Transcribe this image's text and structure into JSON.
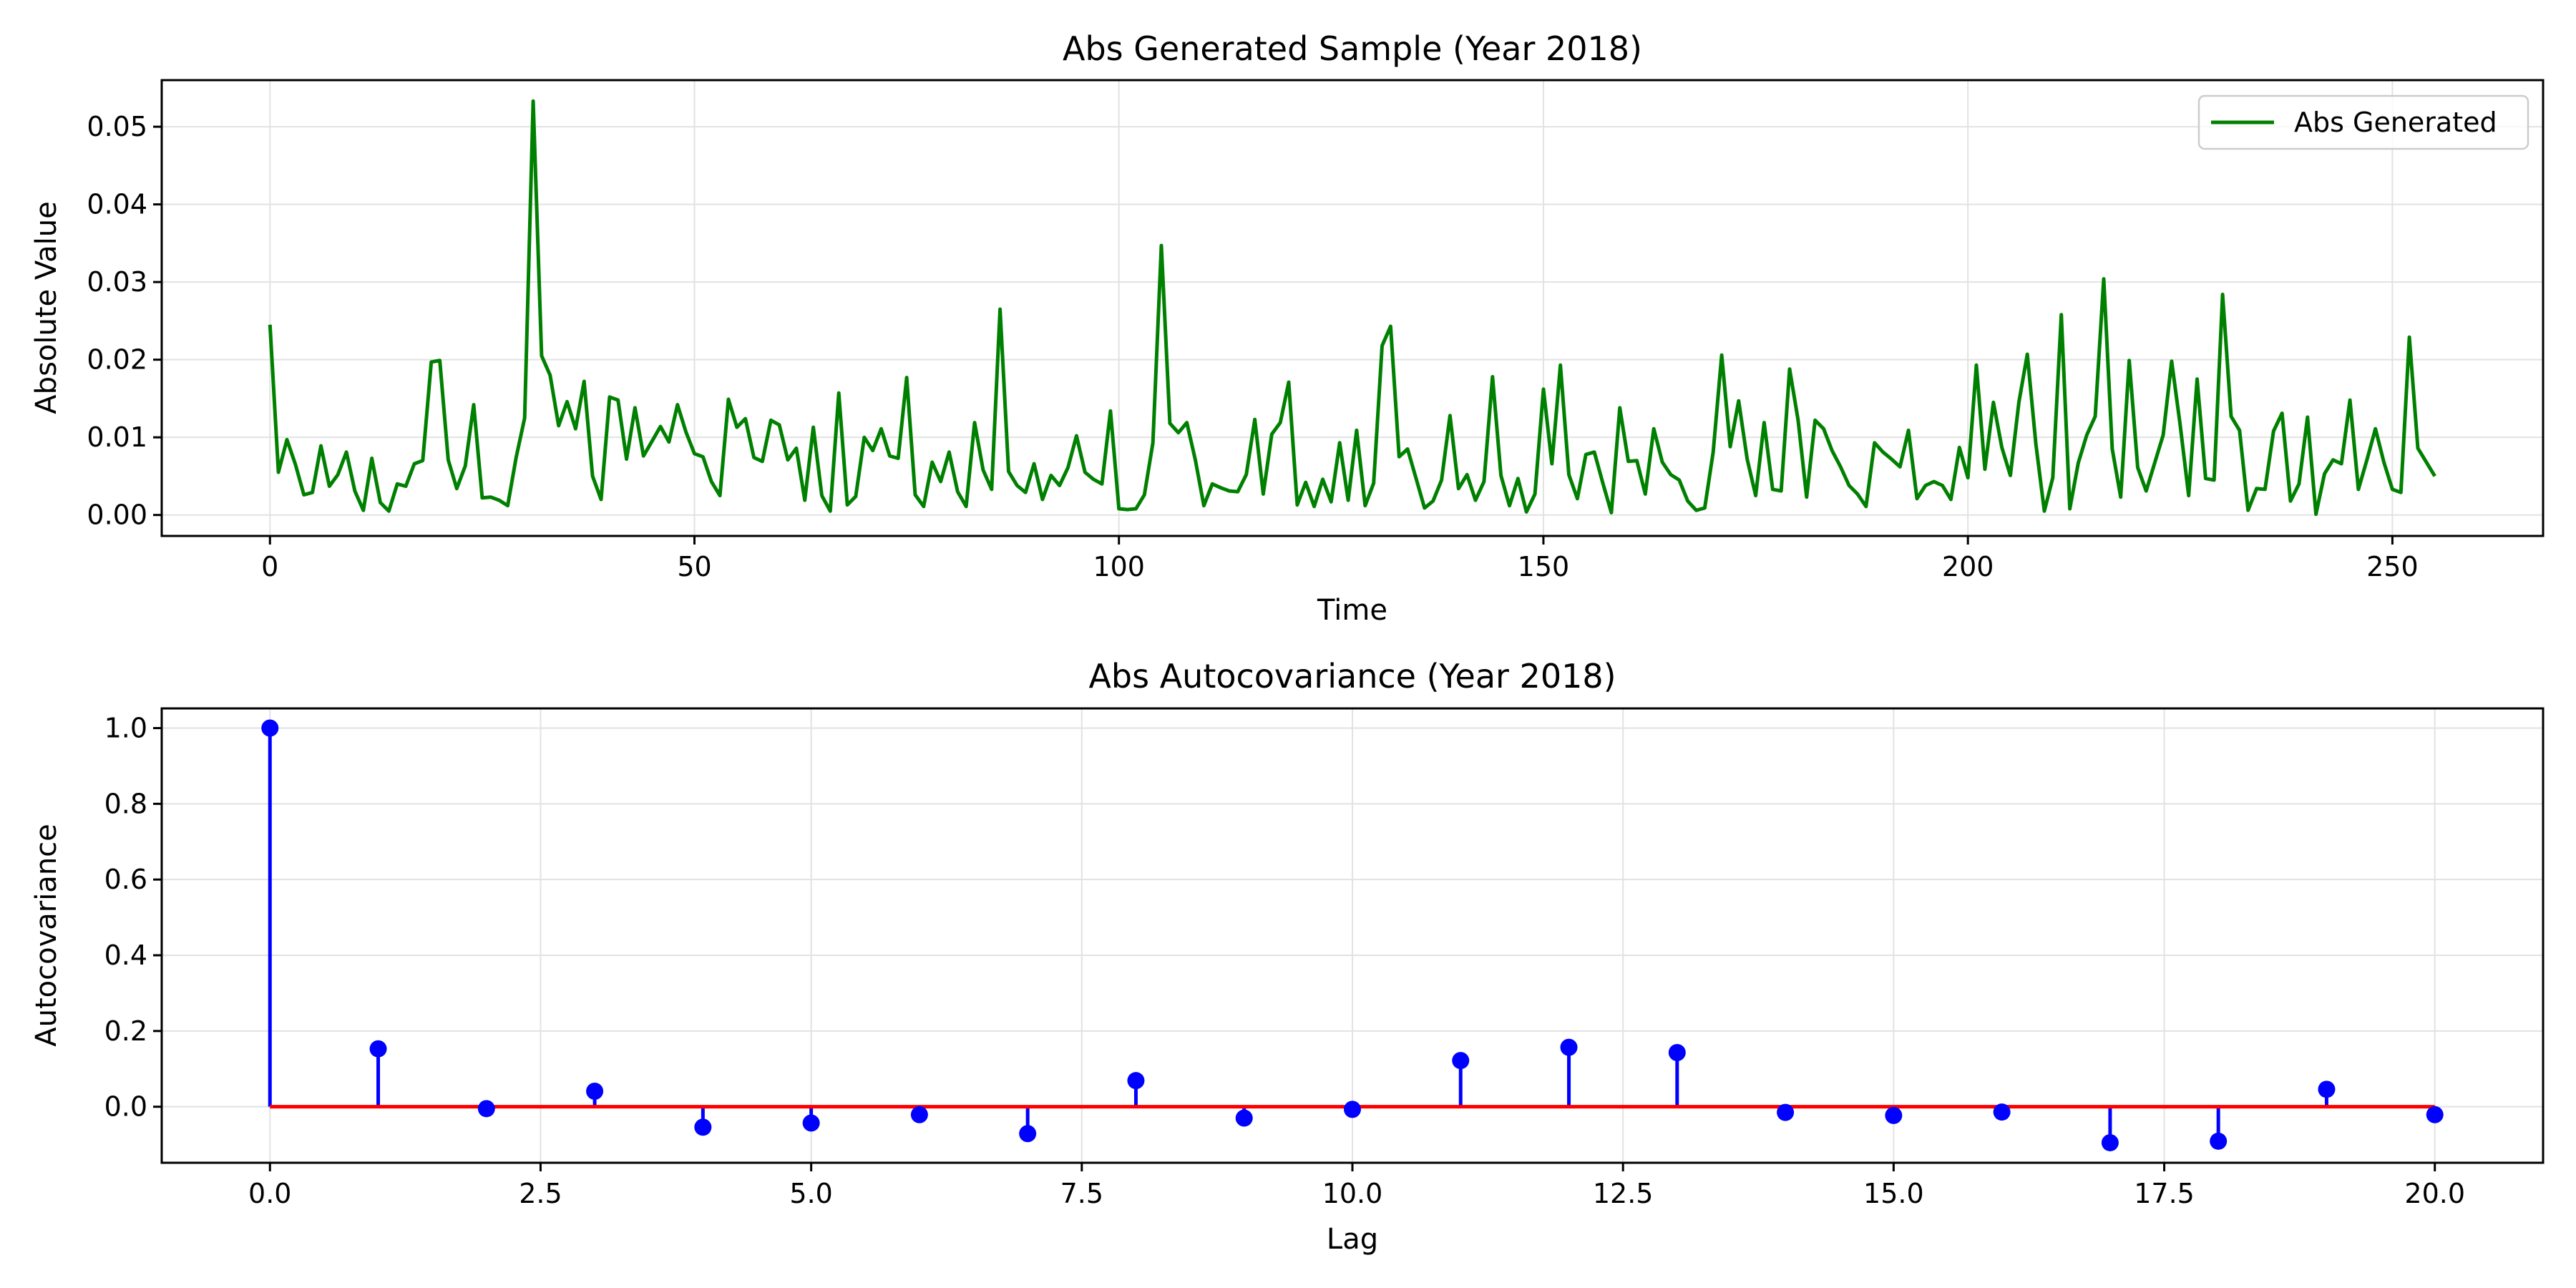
{
  "chart_data": [
    {
      "type": "line",
      "title": "Abs Generated Sample (Year 2018)",
      "xlabel": "Time",
      "ylabel": "Absolute Value",
      "xlim": [
        -12.75,
        267.75
      ],
      "ylim": [
        -0.0027,
        0.056
      ],
      "xticks": [
        0,
        50,
        100,
        150,
        200,
        250
      ],
      "xtick_labels": [
        "0",
        "50",
        "100",
        "150",
        "200",
        "250"
      ],
      "yticks": [
        0.0,
        0.01,
        0.02,
        0.03,
        0.04,
        0.05
      ],
      "ytick_labels": [
        "0.00",
        "0.01",
        "0.02",
        "0.03",
        "0.04",
        "0.05"
      ],
      "grid": true,
      "legend": {
        "position": "top-right",
        "entries": [
          "Abs Generated"
        ]
      },
      "series": [
        {
          "name": "Abs Generated",
          "color": "#008000",
          "values": [
            0.0245,
            0.0055,
            0.0097,
            0.0065,
            0.0026,
            0.0029,
            0.0089,
            0.0037,
            0.0052,
            0.0081,
            0.0031,
            0.0006,
            0.0073,
            0.0016,
            0.0005,
            0.004,
            0.0037,
            0.0066,
            0.007,
            0.0197,
            0.0199,
            0.0071,
            0.0034,
            0.0063,
            0.0142,
            0.0022,
            0.0023,
            0.0019,
            0.0012,
            0.0074,
            0.0125,
            0.0533,
            0.0205,
            0.018,
            0.0115,
            0.0146,
            0.0111,
            0.0172,
            0.005,
            0.002,
            0.0152,
            0.0148,
            0.0072,
            0.0138,
            0.0076,
            0.0095,
            0.0114,
            0.0094,
            0.0142,
            0.0107,
            0.0079,
            0.0075,
            0.0043,
            0.0025,
            0.0149,
            0.0113,
            0.0124,
            0.0074,
            0.0069,
            0.0122,
            0.0116,
            0.0071,
            0.0086,
            0.0019,
            0.0113,
            0.0025,
            0.0005,
            0.0157,
            0.0013,
            0.0024,
            0.01,
            0.0083,
            0.0111,
            0.0076,
            0.0073,
            0.0177,
            0.0026,
            0.0011,
            0.0068,
            0.0043,
            0.0081,
            0.003,
            0.0011,
            0.0119,
            0.0058,
            0.0033,
            0.0265,
            0.0056,
            0.0038,
            0.0029,
            0.0066,
            0.002,
            0.0051,
            0.0038,
            0.0061,
            0.0102,
            0.0055,
            0.0046,
            0.004,
            0.0134,
            0.0008,
            0.0007,
            0.0008,
            0.0026,
            0.0093,
            0.0347,
            0.0118,
            0.0106,
            0.0119,
            0.0071,
            0.0012,
            0.004,
            0.0035,
            0.0031,
            0.003,
            0.0052,
            0.0123,
            0.0027,
            0.0104,
            0.0119,
            0.0171,
            0.0013,
            0.0042,
            0.0011,
            0.0046,
            0.0017,
            0.0093,
            0.0019,
            0.0109,
            0.0012,
            0.0041,
            0.0218,
            0.0243,
            0.0075,
            0.0085,
            0.0047,
            0.0009,
            0.0018,
            0.0045,
            0.0128,
            0.0034,
            0.0052,
            0.0019,
            0.0043,
            0.0178,
            0.0051,
            0.0012,
            0.0047,
            0.0004,
            0.0027,
            0.0162,
            0.0066,
            0.0193,
            0.0052,
            0.0021,
            0.0078,
            0.0081,
            0.0041,
            0.0003,
            0.0138,
            0.0069,
            0.007,
            0.0027,
            0.0111,
            0.0068,
            0.0052,
            0.0045,
            0.0018,
            0.0006,
            0.0009,
            0.0081,
            0.0206,
            0.0088,
            0.0147,
            0.0072,
            0.0025,
            0.0119,
            0.0033,
            0.0031,
            0.0188,
            0.0122,
            0.0023,
            0.0122,
            0.0111,
            0.0083,
            0.0062,
            0.0038,
            0.0027,
            0.0011,
            0.0093,
            0.0081,
            0.0072,
            0.0062,
            0.0109,
            0.0021,
            0.0038,
            0.0043,
            0.0038,
            0.002,
            0.0087,
            0.0048,
            0.0193,
            0.0059,
            0.0145,
            0.0087,
            0.0051,
            0.0145,
            0.0207,
            0.0092,
            0.0005,
            0.0048,
            0.0258,
            0.0008,
            0.0067,
            0.0103,
            0.0127,
            0.0304,
            0.0085,
            0.0023,
            0.0199,
            0.0061,
            0.0031,
            0.0067,
            0.0103,
            0.0198,
            0.0116,
            0.0025,
            0.0175,
            0.0047,
            0.0045,
            0.0284,
            0.0127,
            0.0109,
            0.0006,
            0.0034,
            0.0033,
            0.0108,
            0.0131,
            0.0018,
            0.004,
            0.0126,
            0.0001,
            0.0053,
            0.0071,
            0.0066,
            0.0148,
            0.0033,
            0.0071,
            0.0111,
            0.0068,
            0.0033,
            0.0029,
            0.0229,
            0.0086,
            0.0068,
            0.005
          ]
        }
      ]
    },
    {
      "type": "stem",
      "title": "Abs Autocovariance (Year 2018)",
      "xlabel": "Lag",
      "ylabel": "Autocovariance",
      "xlim": [
        -1.0,
        21.0
      ],
      "ylim": [
        -0.148,
        1.052
      ],
      "xticks": [
        0.0,
        2.5,
        5.0,
        7.5,
        10.0,
        12.5,
        15.0,
        17.5,
        20.0
      ],
      "xtick_labels": [
        "0.0",
        "2.5",
        "5.0",
        "7.5",
        "10.0",
        "12.5",
        "15.0",
        "17.5",
        "20.0"
      ],
      "yticks": [
        0.0,
        0.2,
        0.4,
        0.6,
        0.8,
        1.0
      ],
      "ytick_labels": [
        "0.0",
        "0.2",
        "0.4",
        "0.6",
        "0.8",
        "1.0"
      ],
      "grid": true,
      "marker_color": "#0000ff",
      "stem_color": "#0000ff",
      "baseline_color": "#ff0000",
      "x": [
        0,
        1,
        2,
        3,
        4,
        5,
        6,
        7,
        8,
        9,
        10,
        11,
        12,
        13,
        14,
        15,
        16,
        17,
        18,
        19,
        20
      ],
      "values": [
        1.0,
        0.153,
        -0.005,
        0.041,
        -0.054,
        -0.043,
        -0.021,
        -0.071,
        0.069,
        -0.03,
        -0.007,
        0.122,
        0.157,
        0.143,
        -0.015,
        -0.023,
        -0.014,
        -0.095,
        -0.091,
        0.046,
        -0.021
      ]
    }
  ]
}
